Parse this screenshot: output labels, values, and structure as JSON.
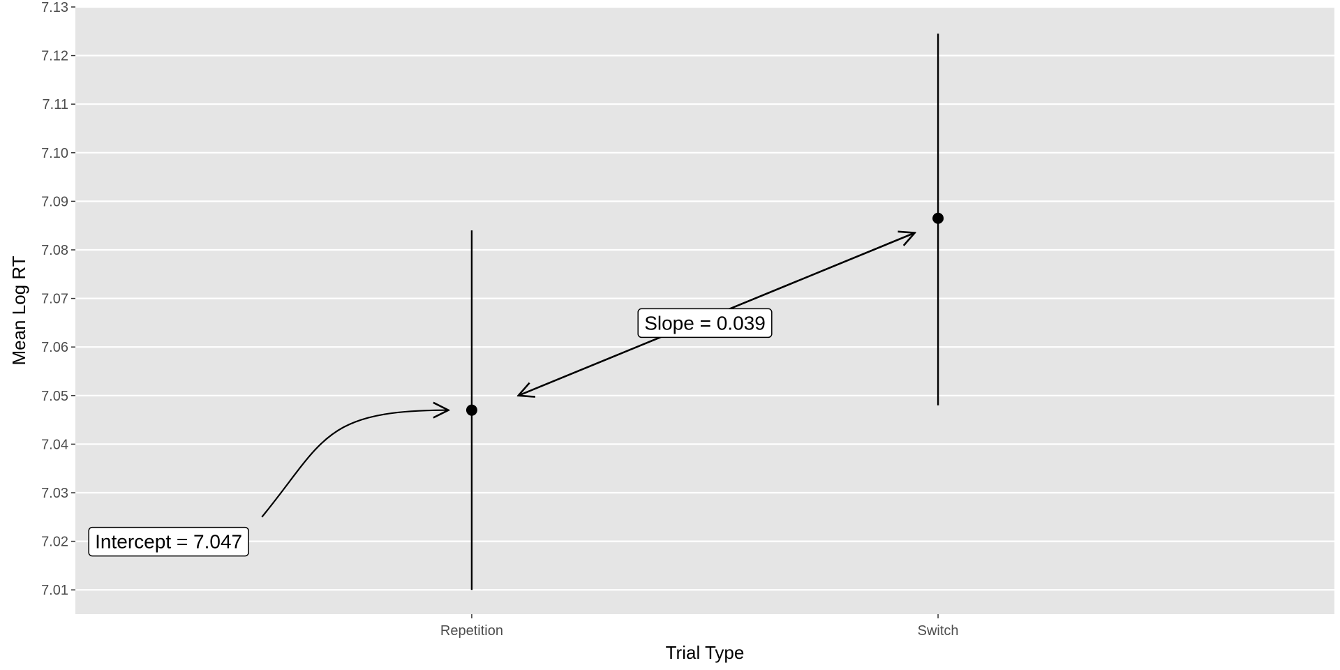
{
  "chart_data": {
    "type": "scatter",
    "title": "",
    "xlabel": "Trial Type",
    "ylabel": "Mean Log RT",
    "categories": [
      "Repetition",
      "Switch"
    ],
    "ylim": [
      7.005,
      7.13
    ],
    "yticks": [
      "7.01",
      "7.02",
      "7.03",
      "7.04",
      "7.05",
      "7.06",
      "7.07",
      "7.08",
      "7.09",
      "7.10",
      "7.11",
      "7.12",
      "7.13"
    ],
    "grid": true,
    "series": [
      {
        "points": [
          {
            "x": "Repetition",
            "y": 7.047,
            "ymin": 7.01,
            "ymax": 7.084
          },
          {
            "x": "Switch",
            "y": 7.0865,
            "ymin": 7.048,
            "ymax": 7.1245
          }
        ]
      }
    ],
    "annotations": [
      {
        "text": "Intercept = 7.047",
        "x": 0.35,
        "y": 7.02,
        "arrow_from": [
          0.55,
          7.025
        ],
        "arrow_to": [
          0.95,
          7.047
        ]
      },
      {
        "text": "Slope = 0.039",
        "x": 1.5,
        "y": 7.065,
        "arrow_from": [
          1.95,
          7.0835
        ],
        "arrow_to": [
          1.1,
          7.05
        ]
      }
    ],
    "colors": {
      "panel": "#e5e5e5",
      "grid": "#ffffff",
      "points": "#000000"
    }
  }
}
